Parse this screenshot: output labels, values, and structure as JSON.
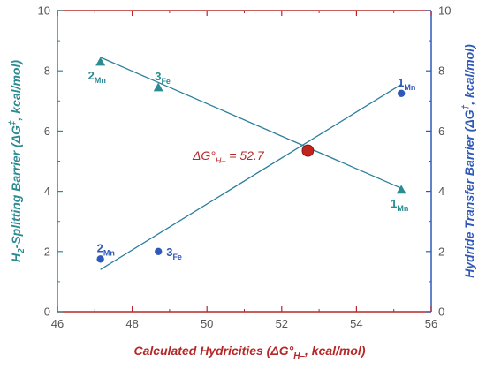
{
  "colors": {
    "left_axis": "#2a8c92",
    "right_axis": "#2f59b8",
    "bottom_axis": "#b52828",
    "line": "#2a7f9c",
    "triangle": "#2a8c92",
    "circle": "#2f59b8",
    "intersection": "#c0241c"
  },
  "chart_data": {
    "type": "scatter",
    "xlabel": {
      "main": "Calculated Hydricities (ΔG°",
      "sub": "H–",
      "tail": ", kcal/mol)"
    },
    "ylabel_left": {
      "pre": "H",
      "pre_sub": "2",
      "main": "-Splitting Barrier (ΔG",
      "sup": "‡",
      "tail": ", kcal/mol)"
    },
    "ylabel_right": {
      "main": "Hydride Transfer Barrier (ΔG",
      "sup": "‡",
      "tail": ", kcal/mol)"
    },
    "xlim": [
      46,
      56
    ],
    "ylim": [
      0,
      10
    ],
    "xticks": [
      46,
      48,
      50,
      52,
      54,
      56
    ],
    "yticks": [
      0,
      2,
      4,
      6,
      8,
      10
    ],
    "grid": false,
    "series": [
      {
        "marker": "triangle",
        "points": [
          {
            "x": 47.15,
            "y": 8.3,
            "label": "2",
            "sub": "Mn",
            "label_pos": "below-left"
          },
          {
            "x": 48.7,
            "y": 7.45,
            "label": "3",
            "sub": "Fe",
            "label_pos": "above"
          },
          {
            "x": 55.2,
            "y": 4.05,
            "label": "1",
            "sub": "Mn",
            "label_pos": "below"
          }
        ],
        "fit_line": {
          "x": [
            47.15,
            55.2
          ],
          "y": [
            8.45,
            4.1
          ]
        }
      },
      {
        "marker": "circle",
        "points": [
          {
            "x": 47.15,
            "y": 1.75,
            "label": "2",
            "sub": "Mn",
            "label_pos": "above"
          },
          {
            "x": 48.7,
            "y": 2.0,
            "label": "3",
            "sub": "Fe",
            "label_pos": "right"
          },
          {
            "x": 55.2,
            "y": 7.25,
            "label": "1",
            "sub": "Mn",
            "label_pos": "above"
          }
        ],
        "fit_line": {
          "x": [
            47.15,
            55.2
          ],
          "y": [
            1.4,
            7.55
          ]
        }
      }
    ],
    "intersection": {
      "x": 52.7,
      "y": 5.35
    },
    "annotation": {
      "main": "ΔG°",
      "sub": "H–",
      "tail": " = 52.7"
    }
  }
}
